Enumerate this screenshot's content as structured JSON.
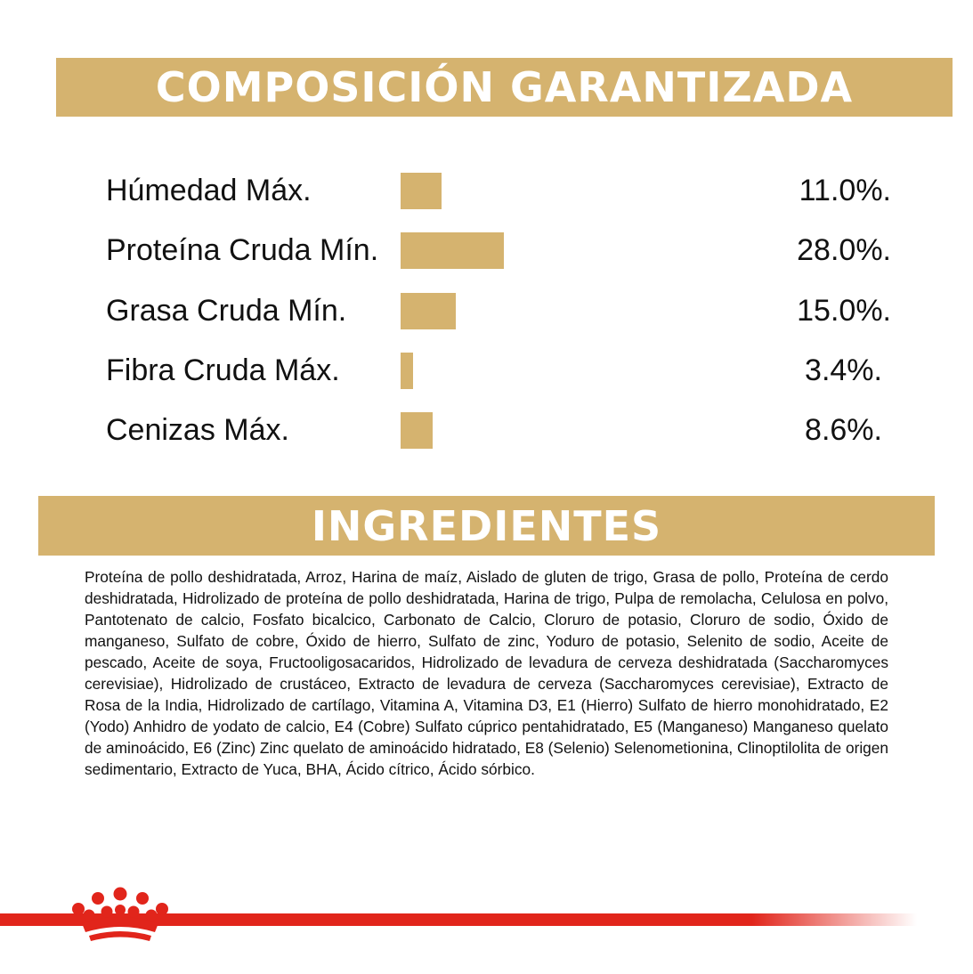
{
  "composition": {
    "title": "COMPOSICIÓN GARANTIZADA",
    "rows": [
      {
        "label": "Húmedad Máx.",
        "value": "11.0%.",
        "percent": 11.0
      },
      {
        "label": "Proteína Cruda Mín.",
        "value": "28.0%.",
        "percent": 28.0
      },
      {
        "label": "Grasa Cruda Mín.",
        "value": "15.0%.",
        "percent": 15.0
      },
      {
        "label": "Fibra Cruda Máx.",
        "value": "3.4%.",
        "percent": 3.4
      },
      {
        "label": "Cenizas Máx.",
        "value": "8.6%.",
        "percent": 8.6
      }
    ]
  },
  "ingredients": {
    "title": "INGREDIENTES",
    "text": "Proteína de pollo deshidratada, Arroz, Harina de maíz,  Aislado de gluten de trigo, Grasa de pollo, Proteína de cerdo deshidratada, Hidrolizado de proteína de pollo deshidratada, Harina de trigo, Pulpa de remolacha, Celulosa en polvo, Pantotenato de calcio, Fosfato bicalcico, Carbonato de Calcio, Cloruro de potasio, Cloruro de sodio, Óxido de manganeso, Sulfato de cobre, Óxido de hierro, Sulfato de zinc, Yoduro de potasio, Selenito de sodio, Aceite de pescado, Aceite de soya, Fructooligosacaridos, Hidrolizado de levadura de cerveza deshidratada (Saccharomyces cerevisiae), Hidrolizado de crustáceo, Extracto de levadura de cerveza (Saccharomyces cerevisiae), Extracto de Rosa de la India, Hidrolizado de cartílago, Vitamina A, Vitamina D3, E1 (Hierro) Sulfato de hierro monohidratado, E2 (Yodo) Anhidro de yodato de calcio, E4 (Cobre) Sulfato cúprico pentahidratado, E5 (Manganeso) Manganeso quelato de aminoácido, E6 (Zinc) Zinc quelato de aminoácido hidratado, E8 (Selenio) Selenometionina, Clinoptilolita de origen sedimentario, Extracto de Yuca, BHA, Ácido cítrico, Ácido sórbico."
  },
  "colors": {
    "gold": "#d5b36f",
    "brand_red": "#e1251b"
  },
  "icons": {
    "logo": "royal-crown-icon"
  }
}
